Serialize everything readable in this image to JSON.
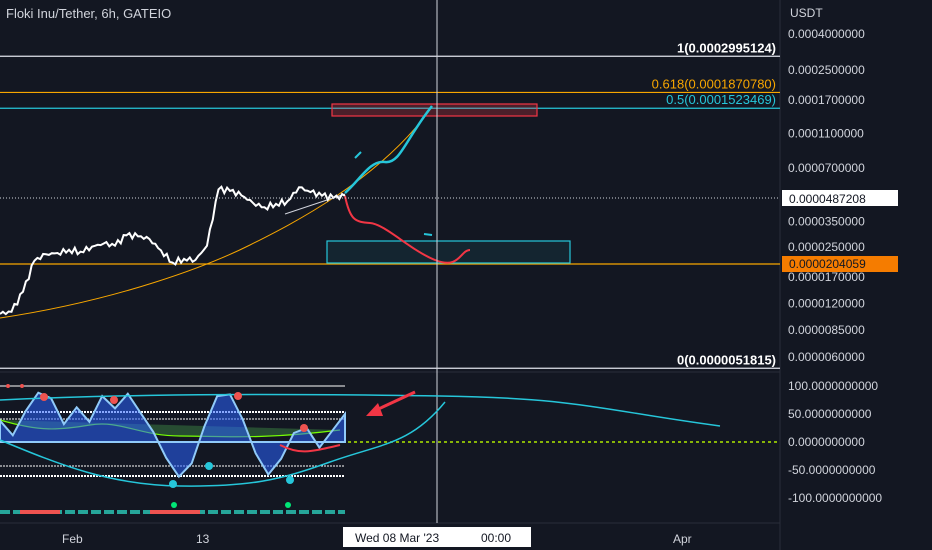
{
  "header": {
    "title": "Floki Inu/Tether, 6h, GATEIO"
  },
  "chart_data": [
    {
      "type": "line",
      "title": "Floki Inu/Tether, 6h, GATEIO",
      "currency_label": "USDT",
      "scale": "log",
      "ylim": [
        5e-06,
        0.00045
      ],
      "y_ticks": [
        "0.0004000000",
        "0.0002500000",
        "0.0001700000",
        "0.0001100000",
        "0.0000700000",
        "0.0000350000",
        "0.0000250000",
        "0.0000170000",
        "0.0000120000",
        "0.0000085000",
        "0.0000060000"
      ],
      "last_price": "0.0000487208",
      "crosshair_price": "0.0000204059",
      "fib_levels": [
        {
          "label": "1(0.0002995124)",
          "value": 0.0002995124,
          "color": "#e0e3eb"
        },
        {
          "label": "0.618(0.0001870780)",
          "value": 0.000187078,
          "color": "#f7a600"
        },
        {
          "label": "0.5(0.0001523469)",
          "value": 0.0001523469,
          "color": "#26c6da"
        },
        {
          "label": "0(0.0000051815)",
          "value": 5.1815e-06,
          "color": "#e0e3eb"
        }
      ],
      "series": [
        {
          "values": [
            1.05e-05,
            1.08e-05,
            1.4e-05,
            2.1e-05,
            2.28e-05,
            2.32e-05,
            2.42e-05,
            2.36e-05,
            2.52e-05,
            2.62e-05,
            2.55e-05,
            2.92e-05,
            2.88e-05,
            2.78e-05,
            2.4e-05,
            2.05e-05,
            2.15e-05,
            2.12e-05,
            2.55e-05,
            5.3e-05,
            5.2e-05,
            4.9e-05,
            4.45e-05,
            4.2e-05,
            4.4e-05,
            4.55e-05,
            5.45e-05,
            5.12e-05,
            4.88e-05,
            4.75e-05,
            4.87e-05
          ]
        }
      ],
      "x_tick_labels": [
        "Feb",
        "13",
        "Apr"
      ],
      "crosshair_time_label": "Wed 08 Mar '23",
      "crosshair_time_suffix": "00:00"
    },
    {
      "type": "line",
      "ylim": [
        -120,
        120
      ],
      "y_ticks": [
        "100.0000000000",
        "50.0000000000",
        "0.0000000000",
        "-50.0000000000",
        "-100.0000000000"
      ],
      "series": [
        {
          "values": [
            38,
            12,
            55,
            88,
            78,
            32,
            62,
            36,
            82,
            60,
            86,
            52,
            18,
            -28,
            -62,
            -38,
            28,
            82,
            85,
            40,
            -20,
            -58,
            -30,
            16,
            25,
            -10,
            20,
            50
          ]
        }
      ]
    }
  ]
}
